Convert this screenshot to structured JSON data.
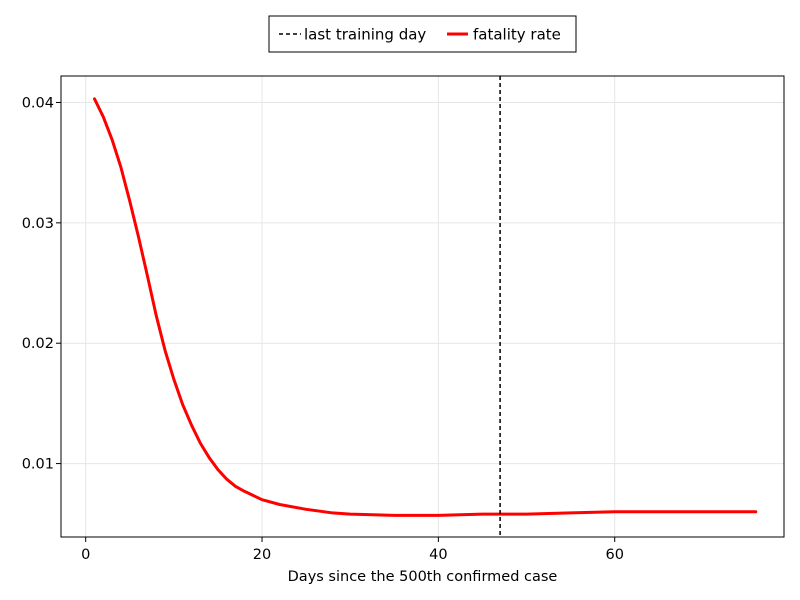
{
  "chart_data": {
    "type": "line",
    "xlabel": "Days since the 500th confirmed case",
    "ylabel": "",
    "xlim": [
      -2.8,
      79.2
    ],
    "ylim": [
      0.0039,
      0.0422
    ],
    "x_ticks": [
      0,
      20,
      40,
      60
    ],
    "x_tick_labels": [
      "0",
      "20",
      "40",
      "60"
    ],
    "y_ticks": [
      0.01,
      0.02,
      0.03,
      0.04
    ],
    "y_tick_labels": [
      "0.01",
      "0.02",
      "0.03",
      "0.04"
    ],
    "grid": true,
    "legend_position": "top-center",
    "series": [
      {
        "name": "fatality rate",
        "color": "#ff0000",
        "style": "solid",
        "x": [
          1,
          2,
          3,
          4,
          5,
          6,
          7,
          8,
          9,
          10,
          11,
          12,
          13,
          14,
          15,
          16,
          17,
          18,
          20,
          22,
          25,
          28,
          30,
          35,
          40,
          45,
          50,
          55,
          60,
          65,
          70,
          76
        ],
        "y": [
          0.0403,
          0.0388,
          0.0369,
          0.0346,
          0.0318,
          0.0288,
          0.0256,
          0.0223,
          0.0194,
          0.017,
          0.0149,
          0.0132,
          0.0117,
          0.0105,
          0.0095,
          0.0087,
          0.0081,
          0.0077,
          0.007,
          0.0066,
          0.0062,
          0.0059,
          0.0058,
          0.0057,
          0.0057,
          0.0058,
          0.0058,
          0.0059,
          0.006,
          0.006,
          0.006,
          0.006
        ]
      }
    ],
    "vlines": [
      {
        "name": "last training day",
        "x": 47,
        "color": "#000000",
        "style": "dashed"
      }
    ]
  }
}
